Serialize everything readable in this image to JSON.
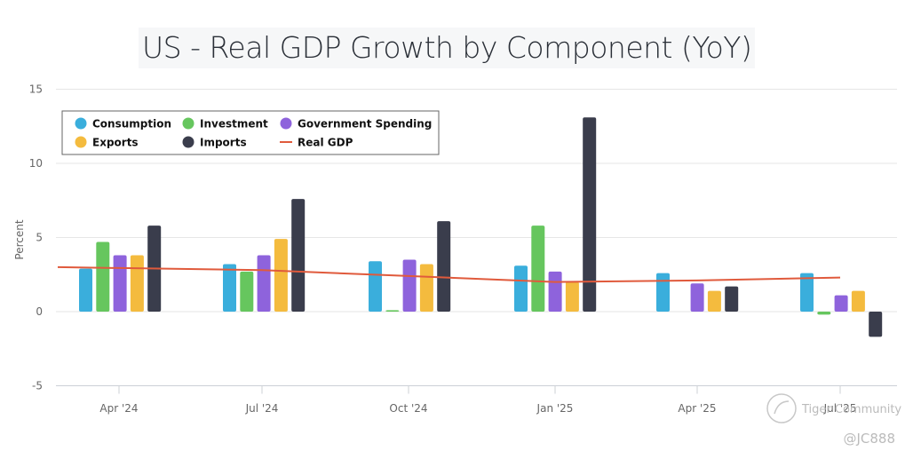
{
  "chart_data": {
    "type": "bar",
    "title": "US - Real GDP Growth by Component (YoY)",
    "xlabel": "",
    "ylabel": "Percent",
    "ylim": [
      -5,
      15
    ],
    "yticks": [
      -5,
      0,
      5,
      10,
      15
    ],
    "grid": true,
    "legend_position": "top-left",
    "categories": [
      "Apr '24",
      "Jul '24",
      "Oct '24",
      "Jan '25",
      "Apr '25",
      "Jul '25"
    ],
    "series": [
      {
        "name": "Consumption",
        "type": "bar",
        "color": "#3aaedc",
        "values": [
          2.9,
          3.2,
          3.4,
          3.1,
          2.6,
          2.6
        ]
      },
      {
        "name": "Investment",
        "type": "bar",
        "color": "#66c65e",
        "values": [
          4.7,
          2.7,
          0.1,
          5.8,
          0.0,
          -0.2
        ]
      },
      {
        "name": "Government Spending",
        "type": "bar",
        "color": "#8e63dc",
        "values": [
          3.8,
          3.8,
          3.5,
          2.7,
          1.9,
          1.1
        ]
      },
      {
        "name": "Exports",
        "type": "bar",
        "color": "#f4bb3e",
        "values": [
          3.8,
          4.9,
          3.2,
          2.0,
          1.4,
          1.4
        ]
      },
      {
        "name": "Imports",
        "type": "bar",
        "color": "#3a3d4c",
        "values": [
          5.8,
          7.6,
          6.1,
          13.1,
          1.7,
          -1.7
        ]
      },
      {
        "name": "Real GDP",
        "type": "line",
        "color": "#e05a3c",
        "values": [
          3.0,
          2.8,
          2.4,
          2.0,
          2.1,
          2.3
        ]
      }
    ]
  },
  "watermark": {
    "brand": "Tiger Community",
    "user": "@JC888"
  }
}
